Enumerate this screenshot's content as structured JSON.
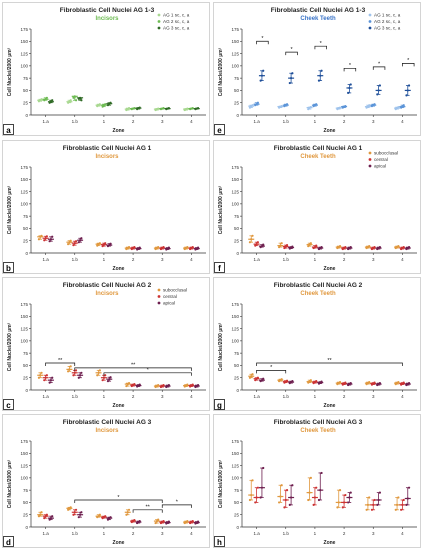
{
  "colors": {
    "green": "#6dbb52",
    "blue": "#3a74c8",
    "orange": "#e0983e",
    "purple": "#6e1f4f",
    "red": "#cc3333",
    "axis": "#333333"
  },
  "common": {
    "ylabel": "Cell Nuclei/2000 µm²",
    "xlabel": "Zone",
    "categories": [
      "1.a",
      "1.b",
      "1",
      "2",
      "3",
      "4"
    ],
    "yticks": [
      "0",
      "25",
      "50",
      "75",
      "100",
      "125",
      "150",
      "175"
    ]
  },
  "chart_data": [
    {
      "id": "a",
      "type": "scatter",
      "title": "Fibroblastic Cell Nuclei AG 1-3",
      "subtitle": "Incisors",
      "subtitle_color": "#6dbb52",
      "legend": {
        "position": "top-right",
        "items": [
          "AG 1 sc, c, a",
          "AG 2 sc, c, a",
          "AG 3 sc, c, a"
        ]
      },
      "ylim": [
        0,
        175
      ],
      "series": [
        {
          "name": "AG 1 sc, c, a",
          "color": "#a8d890",
          "values": [
            [
              28,
              30,
              32
            ],
            [
              25,
              27,
              30
            ],
            [
              18,
              20,
              22
            ],
            [
              10,
              12,
              14
            ],
            [
              10,
              12,
              13
            ],
            [
              10,
              12,
              13
            ]
          ]
        },
        {
          "name": "AG 2 sc, c, a",
          "color": "#6dbb52",
          "values": [
            [
              30,
              32,
              35
            ],
            [
              35,
              38,
              30
            ],
            [
              17,
              20,
              22
            ],
            [
              12,
              13,
              14
            ],
            [
              12,
              13,
              14
            ],
            [
              12,
              13,
              14
            ]
          ]
        },
        {
          "name": "AG 3 sc, c, a",
          "color": "#2f6a25",
          "values": [
            [
              25,
              27,
              30
            ],
            [
              33,
              35,
              30
            ],
            [
              20,
              23,
              25
            ],
            [
              12,
              14,
              15
            ],
            [
              12,
              13,
              14
            ],
            [
              12,
              13,
              14
            ]
          ]
        }
      ],
      "significance": []
    },
    {
      "id": "e",
      "type": "scatter",
      "title": "Fibroblastic Cell Nuclei AG 1-3",
      "subtitle": "Cheek Teeth",
      "subtitle_color": "#3a74c8",
      "legend": {
        "position": "top-right",
        "items": [
          "AG 1 sc, c, a",
          "AG 2 sc, c, a",
          "AG 3 sc, c, a"
        ]
      },
      "ylim": [
        0,
        175
      ],
      "series": [
        {
          "name": "AG 1 sc, c, a",
          "color": "#9fc3ec",
          "values": [
            [
              15,
              18,
              20
            ],
            [
              15,
              17,
              18
            ],
            [
              12,
              15,
              16
            ],
            [
              12,
              14,
              15
            ],
            [
              15,
              17,
              20
            ],
            [
              12,
              14,
              16
            ]
          ]
        },
        {
          "name": "AG 2 sc, c, a",
          "color": "#5b94d8",
          "values": [
            [
              20,
              22,
              25
            ],
            [
              18,
              20,
              22
            ],
            [
              18,
              20,
              22
            ],
            [
              15,
              17,
              18
            ],
            [
              18,
              20,
              22
            ],
            [
              15,
              17,
              20
            ]
          ]
        },
        {
          "name": "AG 3 sc, c, a",
          "color": "#1f4f99",
          "values": [
            [
              70,
              80,
              90
            ],
            [
              65,
              75,
              85
            ],
            [
              70,
              80,
              90
            ],
            [
              45,
              55,
              62
            ],
            [
              42,
              50,
              60
            ],
            [
              40,
              50,
              60
            ]
          ]
        }
      ],
      "significance": [
        {
          "from": 0,
          "to": 0.4,
          "y": 150,
          "label": "*"
        },
        {
          "from": 1,
          "to": 1.4,
          "y": 128,
          "label": "*"
        },
        {
          "from": 2,
          "to": 2.4,
          "y": 140,
          "label": "*"
        },
        {
          "from": 3,
          "to": 3.4,
          "y": 95,
          "label": "*"
        },
        {
          "from": 4,
          "to": 4.4,
          "y": 98,
          "label": "*"
        },
        {
          "from": 5,
          "to": 5.4,
          "y": 105,
          "label": "*"
        }
      ]
    },
    {
      "id": "b",
      "type": "scatter",
      "title": "Fibroblastic Cell Nuclei AG 1",
      "subtitle": "Incisors",
      "subtitle_color": "#e0983e",
      "legend": null,
      "ylim": [
        0,
        175
      ],
      "series": [
        {
          "name": "subocclusal",
          "color": "#e0983e",
          "values": [
            [
              28,
              33,
              35
            ],
            [
              18,
              22,
              25
            ],
            [
              15,
              18,
              20
            ],
            [
              8,
              10,
              12
            ],
            [
              8,
              10,
              12
            ],
            [
              8,
              10,
              12
            ]
          ]
        },
        {
          "name": "central",
          "color": "#cc3333",
          "values": [
            [
              26,
              30,
              34
            ],
            [
              16,
              20,
              24
            ],
            [
              14,
              17,
              20
            ],
            [
              8,
              10,
              12
            ],
            [
              8,
              10,
              12
            ],
            [
              8,
              10,
              12
            ]
          ]
        },
        {
          "name": "apical",
          "color": "#6e1f4f",
          "values": [
            [
              24,
              28,
              33
            ],
            [
              22,
              26,
              30
            ],
            [
              14,
              16,
              19
            ],
            [
              7,
              9,
              11
            ],
            [
              7,
              9,
              11
            ],
            [
              7,
              9,
              11
            ]
          ]
        }
      ],
      "significance": []
    },
    {
      "id": "f",
      "type": "scatter",
      "title": "Fibroblastic Cell Nuclei AG 1",
      "subtitle": "Cheek Teeth",
      "subtitle_color": "#e0983e",
      "legend": {
        "position": "top-right",
        "items": [
          "subocclusal",
          "central",
          "apical"
        ]
      },
      "ylim": [
        0,
        175
      ],
      "series": [
        {
          "name": "subocclusal",
          "color": "#e0983e",
          "values": [
            [
              22,
              28,
              35
            ],
            [
              12,
              15,
              20
            ],
            [
              14,
              17,
              20
            ],
            [
              10,
              12,
              14
            ],
            [
              10,
              12,
              14
            ],
            [
              10,
              12,
              14
            ]
          ]
        },
        {
          "name": "central",
          "color": "#cc3333",
          "values": [
            [
              15,
              18,
              22
            ],
            [
              10,
              13,
              16
            ],
            [
              10,
              12,
              15
            ],
            [
              8,
              10,
              12
            ],
            [
              8,
              10,
              12
            ],
            [
              8,
              10,
              12
            ]
          ]
        },
        {
          "name": "apical",
          "color": "#6e1f4f",
          "values": [
            [
              12,
              14,
              17
            ],
            [
              9,
              11,
              13
            ],
            [
              8,
              10,
              12
            ],
            [
              8,
              10,
              12
            ],
            [
              8,
              10,
              12
            ],
            [
              8,
              10,
              12
            ]
          ]
        }
      ],
      "significance": []
    },
    {
      "id": "c",
      "type": "scatter",
      "title": "Fibroblastic Cell Nuclei AG 2",
      "subtitle": "Incisors",
      "subtitle_color": "#e0983e",
      "legend": {
        "position": "top-right",
        "items": [
          "subocclusal",
          "central",
          "apical"
        ]
      },
      "ylim": [
        0,
        175
      ],
      "series": [
        {
          "name": "subocclusal",
          "color": "#e0983e",
          "values": [
            [
              25,
              30,
              35
            ],
            [
              38,
              42,
              48
            ],
            [
              30,
              35,
              40
            ],
            [
              8,
              12,
              14
            ],
            [
              6,
              8,
              10
            ],
            [
              7,
              9,
              11
            ]
          ]
        },
        {
          "name": "central",
          "color": "#cc3333",
          "values": [
            [
              20,
              25,
              30
            ],
            [
              30,
              35,
              40
            ],
            [
              20,
              25,
              30
            ],
            [
              8,
              10,
              12
            ],
            [
              6,
              8,
              10
            ],
            [
              7,
              9,
              11
            ]
          ]
        },
        {
          "name": "apical",
          "color": "#6e1f4f",
          "values": [
            [
              15,
              20,
              25
            ],
            [
              25,
              30,
              35
            ],
            [
              18,
              22,
              26
            ],
            [
              7,
              9,
              11
            ],
            [
              6,
              8,
              10
            ],
            [
              6,
              8,
              10
            ]
          ]
        }
      ],
      "significance": [
        {
          "from": 0,
          "to": 1,
          "y": 55,
          "label": "**"
        },
        {
          "from": 1,
          "to": 5,
          "y": 45,
          "label": "**"
        },
        {
          "from": 2,
          "to": 5,
          "y": 35,
          "label": "*"
        }
      ]
    },
    {
      "id": "g",
      "type": "scatter",
      "title": "Fibroblastic Cell Nuclei AG 2",
      "subtitle": "Cheek Teeth",
      "subtitle_color": "#e0983e",
      "legend": null,
      "ylim": [
        0,
        175
      ],
      "series": [
        {
          "name": "subocclusal",
          "color": "#e0983e",
          "values": [
            [
              25,
              28,
              32
            ],
            [
              18,
              20,
              22
            ],
            [
              15,
              17,
              20
            ],
            [
              12,
              14,
              16
            ],
            [
              12,
              14,
              16
            ],
            [
              12,
              14,
              16
            ]
          ]
        },
        {
          "name": "central",
          "color": "#cc3333",
          "values": [
            [
              20,
              23,
              25
            ],
            [
              15,
              17,
              19
            ],
            [
              14,
              16,
              18
            ],
            [
              11,
              13,
              15
            ],
            [
              11,
              13,
              15
            ],
            [
              11,
              13,
              15
            ]
          ]
        },
        {
          "name": "apical",
          "color": "#6e1f4f",
          "values": [
            [
              18,
              20,
              23
            ],
            [
              14,
              16,
              18
            ],
            [
              13,
              15,
              17
            ],
            [
              10,
              12,
              14
            ],
            [
              10,
              12,
              14
            ],
            [
              10,
              12,
              14
            ]
          ]
        }
      ],
      "significance": [
        {
          "from": 0,
          "to": 1,
          "y": 40,
          "label": "*"
        },
        {
          "from": 0,
          "to": 5,
          "y": 55,
          "label": "**"
        }
      ]
    },
    {
      "id": "d",
      "type": "scatter",
      "title": "Fibroblastic Cell Nuclei AG 3",
      "subtitle": "Incisors",
      "subtitle_color": "#e0983e",
      "legend": null,
      "ylim": [
        0,
        175
      ],
      "series": [
        {
          "name": "subocclusal",
          "color": "#e0983e",
          "values": [
            [
              22,
              25,
              30
            ],
            [
              35,
              38,
              40
            ],
            [
              20,
              22,
              25
            ],
            [
              25,
              30,
              35
            ],
            [
              8,
              12,
              15
            ],
            [
              8,
              10,
              12
            ]
          ]
        },
        {
          "name": "central",
          "color": "#cc3333",
          "values": [
            [
              18,
              22,
              25
            ],
            [
              25,
              30,
              35
            ],
            [
              18,
              20,
              22
            ],
            [
              10,
              12,
              14
            ],
            [
              8,
              10,
              12
            ],
            [
              8,
              10,
              12
            ]
          ]
        },
        {
          "name": "apical",
          "color": "#6e1f4f",
          "values": [
            [
              15,
              18,
              22
            ],
            [
              20,
              25,
              30
            ],
            [
              15,
              18,
              20
            ],
            [
              8,
              10,
              12
            ],
            [
              7,
              9,
              11
            ],
            [
              7,
              9,
              11
            ]
          ]
        }
      ],
      "significance": [
        {
          "from": 1,
          "to": 4,
          "y": 55,
          "label": "*"
        },
        {
          "from": 3,
          "to": 4,
          "y": 35,
          "label": "**"
        },
        {
          "from": 4,
          "to": 5,
          "y": 45,
          "label": "*"
        }
      ]
    },
    {
      "id": "h",
      "type": "scatter",
      "title": "Fibroblastic Cell Nuclei AG 3",
      "subtitle": "Cheek Teeth",
      "subtitle_color": "#e0983e",
      "legend": null,
      "ylim": [
        0,
        175
      ],
      "series": [
        {
          "name": "subocclusal",
          "color": "#e0983e",
          "values": [
            [
              55,
              65,
              95
            ],
            [
              50,
              62,
              85
            ],
            [
              55,
              70,
              100
            ],
            [
              40,
              50,
              75
            ],
            [
              35,
              45,
              60
            ],
            [
              35,
              45,
              60
            ]
          ]
        },
        {
          "name": "central",
          "color": "#cc3333",
          "values": [
            [
              50,
              60,
              80
            ],
            [
              40,
              55,
              75
            ],
            [
              45,
              60,
              80
            ],
            [
              40,
              50,
              65
            ],
            [
              35,
              45,
              55
            ],
            [
              35,
              45,
              55
            ]
          ]
        },
        {
          "name": "apical",
          "color": "#6e1f4f",
          "values": [
            [
              60,
              80,
              120
            ],
            [
              45,
              60,
              85
            ],
            [
              55,
              75,
              110
            ],
            [
              50,
              60,
              70
            ],
            [
              45,
              55,
              70
            ],
            [
              45,
              58,
              80
            ]
          ]
        }
      ],
      "significance": []
    }
  ]
}
